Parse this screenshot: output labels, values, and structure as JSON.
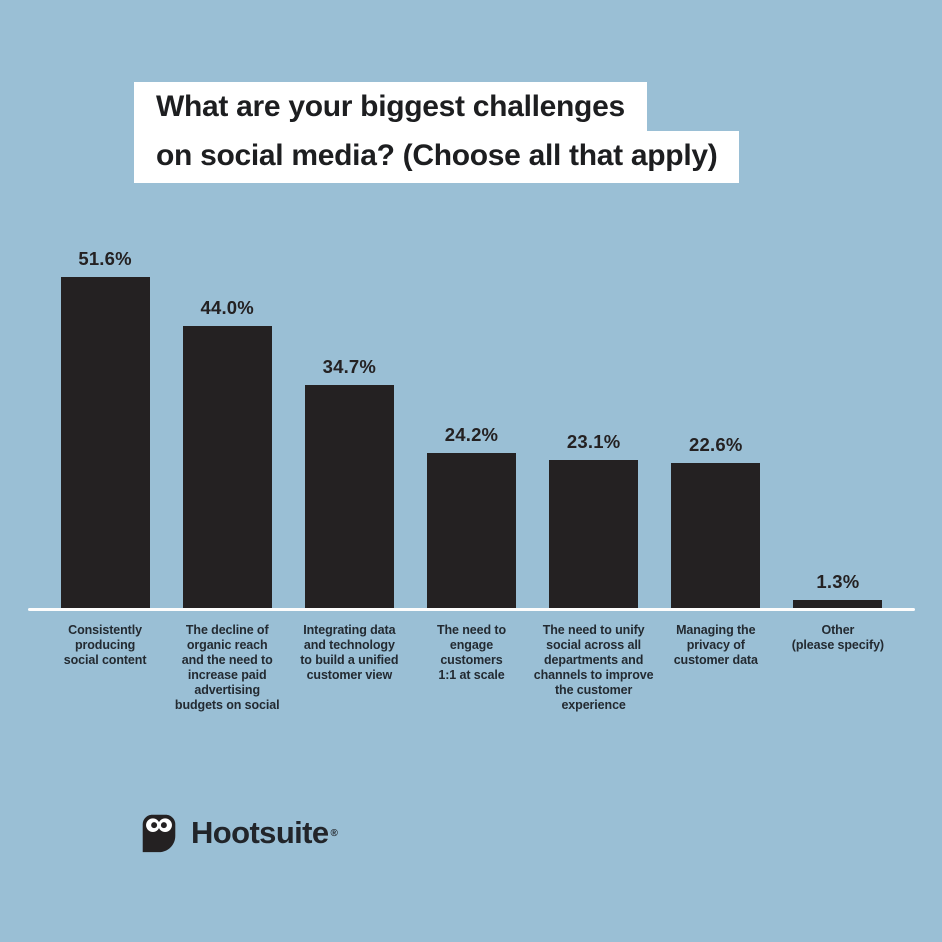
{
  "title": {
    "line1": "What are your biggest challenges",
    "line2": "on social media? (Choose all that apply)"
  },
  "chart_data": {
    "type": "bar",
    "title": "What are your biggest challenges on social media? (Choose all that apply)",
    "categories": [
      "Consistently\nproducing\nsocial content",
      "The decline of\norganic reach\nand the need to\nincrease paid\nadvertising\nbudgets on social",
      "Integrating data\nand technology\nto build a unified\ncustomer view",
      "The need to\nengage\ncustomers\n1:1 at scale",
      "The need to unify\nsocial across all\ndepartments and\nchannels to improve\nthe customer\nexperience",
      "Managing the\nprivacy of\ncustomer data",
      "Other\n(please specify)"
    ],
    "values": [
      51.6,
      44.0,
      34.7,
      24.2,
      23.1,
      22.6,
      1.3
    ],
    "value_labels": [
      "51.6%",
      "44.0%",
      "34.7%",
      "24.2%",
      "23.1%",
      "22.6%",
      "1.3%"
    ],
    "xlabel": "",
    "ylabel": "",
    "ylim": [
      0,
      55
    ],
    "grid": false,
    "legend": false,
    "bar_color": "#242122",
    "background_color": "#9ABFD5",
    "axis_line_color": "#FDFDFD",
    "value_label_color": "#242122",
    "category_label_color": "#232A31"
  },
  "branding": {
    "logo_text": "Hootsuite",
    "registered_mark": "®",
    "logo_icon": "hootsuite-owl-icon",
    "logo_color": "#242122"
  }
}
